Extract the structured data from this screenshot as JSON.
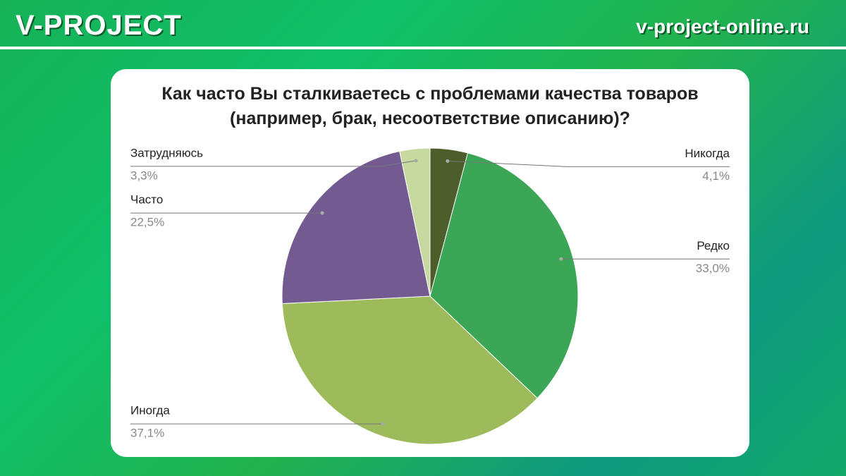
{
  "brand": "V-PROJECT",
  "site": "v-project-online.ru",
  "chart_data": {
    "type": "pie",
    "title": "Как часто Вы сталкиваетесь с проблемами качества товаров (например, брак, несоответствие описанию)?",
    "categories": [
      "Никогда",
      "Редко",
      "Иногда",
      "Часто",
      "Затрудняюсь"
    ],
    "values": [
      4.1,
      33.0,
      37.1,
      22.5,
      3.3
    ],
    "value_labels": [
      "4,1%",
      "33,0%",
      "37,1%",
      "22,5%",
      "3,3%"
    ],
    "colors": [
      "#4e5e2b",
      "#3ba656",
      "#9dbb5b",
      "#735a91",
      "#c6d9a0"
    ]
  }
}
